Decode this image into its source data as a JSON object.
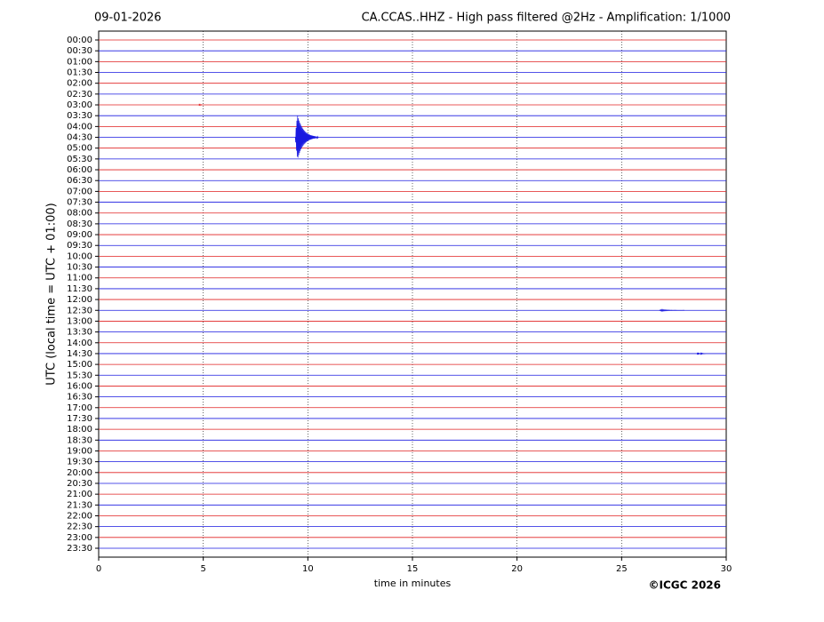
{
  "chart_data": {
    "type": "helicorder",
    "date": "09-01-2026",
    "title": "CA.CCAS..HHZ - High pass filtered @2Hz - Amplification: 1/1000",
    "y_label": "UTC (local time = UTC + 01:00)",
    "x_label": "time in minutes",
    "credit": "©ICGC 2026",
    "categories": [
      "00:00",
      "00:30",
      "01:00",
      "01:30",
      "02:00",
      "02:30",
      "03:00",
      "03:30",
      "04:00",
      "04:30",
      "05:00",
      "05:30",
      "06:00",
      "06:30",
      "07:00",
      "07:30",
      "08:00",
      "08:30",
      "09:00",
      "09:30",
      "10:00",
      "10:30",
      "11:00",
      "11:30",
      "12:00",
      "12:30",
      "13:00",
      "13:30",
      "14:00",
      "14:30",
      "15:00",
      "15:30",
      "16:00",
      "16:30",
      "17:00",
      "17:30",
      "18:00",
      "18:30",
      "19:00",
      "19:30",
      "20:00",
      "20:30",
      "21:00",
      "21:30",
      "22:00",
      "22:30",
      "23:00",
      "23:30"
    ],
    "trace_colors": [
      "#e02020",
      "#1a1ae0"
    ],
    "xlim": [
      0,
      30
    ],
    "xticks": [
      0,
      5,
      10,
      15,
      20,
      25,
      30
    ],
    "grid": true,
    "events": [
      {
        "row": 6,
        "x": 4.8,
        "duration": 0.1,
        "amplitude": 0.15
      },
      {
        "row": 9,
        "x": 9.4,
        "duration": 1.1,
        "amplitude": 3
      },
      {
        "row": 25,
        "x": 26.8,
        "duration": 1.2,
        "amplitude": 0.1
      },
      {
        "row": 29,
        "x": 28.6,
        "duration": 0.4,
        "amplitude": 0.15
      }
    ]
  }
}
